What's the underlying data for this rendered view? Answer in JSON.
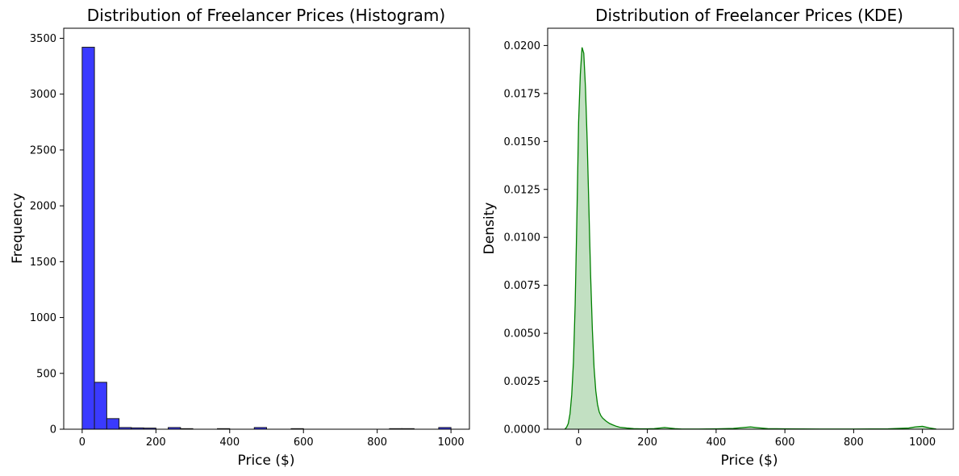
{
  "chart_data": [
    {
      "type": "bar",
      "title": "Distribution of Freelancer Prices (Histogram)",
      "xlabel": "Price ($)",
      "ylabel": "Frequency",
      "xlim": [
        -50,
        1050
      ],
      "ylim": [
        0,
        3590
      ],
      "xticks": [
        0,
        200,
        400,
        600,
        800,
        1000
      ],
      "yticks": [
        0,
        500,
        1000,
        1500,
        2000,
        2500,
        3000,
        3500
      ],
      "bin_width": 33.3,
      "bins": [
        {
          "x0": 0,
          "x1": 33.3,
          "count": 3420
        },
        {
          "x0": 33.3,
          "x1": 66.7,
          "count": 420
        },
        {
          "x0": 66.7,
          "x1": 100,
          "count": 95
        },
        {
          "x0": 100,
          "x1": 133.3,
          "count": 15
        },
        {
          "x0": 133.3,
          "x1": 166.7,
          "count": 12
        },
        {
          "x0": 166.7,
          "x1": 200,
          "count": 10
        },
        {
          "x0": 233.3,
          "x1": 266.7,
          "count": 15
        },
        {
          "x0": 266.7,
          "x1": 300,
          "count": 5
        },
        {
          "x0": 366.7,
          "x1": 400,
          "count": 5
        },
        {
          "x0": 466.7,
          "x1": 500,
          "count": 15
        },
        {
          "x0": 566.7,
          "x1": 600,
          "count": 5
        },
        {
          "x0": 833.3,
          "x1": 866.7,
          "count": 5
        },
        {
          "x0": 866.7,
          "x1": 900,
          "count": 5
        },
        {
          "x0": 966.7,
          "x1": 1000,
          "count": 15
        }
      ],
      "colors": {
        "fill": "#3a3aff",
        "edge": "#1a1a1a"
      },
      "grid": false
    },
    {
      "type": "area",
      "title": "Distribution of Freelancer Prices (KDE)",
      "xlabel": "Price ($)",
      "ylabel": "Density",
      "xlim": [
        -90,
        1090
      ],
      "ylim": [
        0,
        0.0209
      ],
      "xticks": [
        0,
        200,
        400,
        600,
        800,
        1000
      ],
      "yticks": [
        0,
        0.0025,
        0.005,
        0.0075,
        0.01,
        0.0125,
        0.015,
        0.0175,
        0.02
      ],
      "ytick_labels": [
        "0.0000",
        "0.0025",
        "0.0050",
        "0.0075",
        "0.0100",
        "0.0125",
        "0.0150",
        "0.0175",
        "0.0200"
      ],
      "x": [
        -40,
        -35,
        -30,
        -25,
        -20,
        -15,
        -10,
        -5,
        0,
        5,
        10,
        15,
        20,
        25,
        30,
        35,
        40,
        45,
        50,
        55,
        60,
        65,
        70,
        75,
        80,
        90,
        100,
        110,
        120,
        140,
        160,
        180,
        200,
        220,
        240,
        250,
        260,
        280,
        300,
        350,
        400,
        450,
        480,
        500,
        520,
        550,
        600,
        700,
        800,
        900,
        960,
        980,
        1000,
        1020,
        1040
      ],
      "y": [
        0,
        0.0001,
        0.0003,
        0.0008,
        0.0018,
        0.0035,
        0.0065,
        0.011,
        0.016,
        0.0185,
        0.0199,
        0.0196,
        0.0178,
        0.015,
        0.0115,
        0.008,
        0.0052,
        0.0032,
        0.002,
        0.0013,
        0.0009,
        0.0007,
        0.00058,
        0.0005,
        0.00042,
        0.0003,
        0.00022,
        0.00015,
        0.0001,
        6e-05,
        3e-05,
        2e-05,
        2e-05,
        3e-05,
        7e-05,
        9e-05,
        7e-05,
        3e-05,
        1e-05,
        1e-05,
        2e-05,
        4e-05,
        9e-05,
        0.00012,
        8e-05,
        3e-05,
        2e-05,
        1e-05,
        1e-05,
        2e-05,
        6e-05,
        0.00012,
        0.00015,
        7e-05,
        1e-05
      ],
      "colors": {
        "line": "#008000",
        "fill": "#c2e0c2"
      },
      "grid": false
    }
  ]
}
